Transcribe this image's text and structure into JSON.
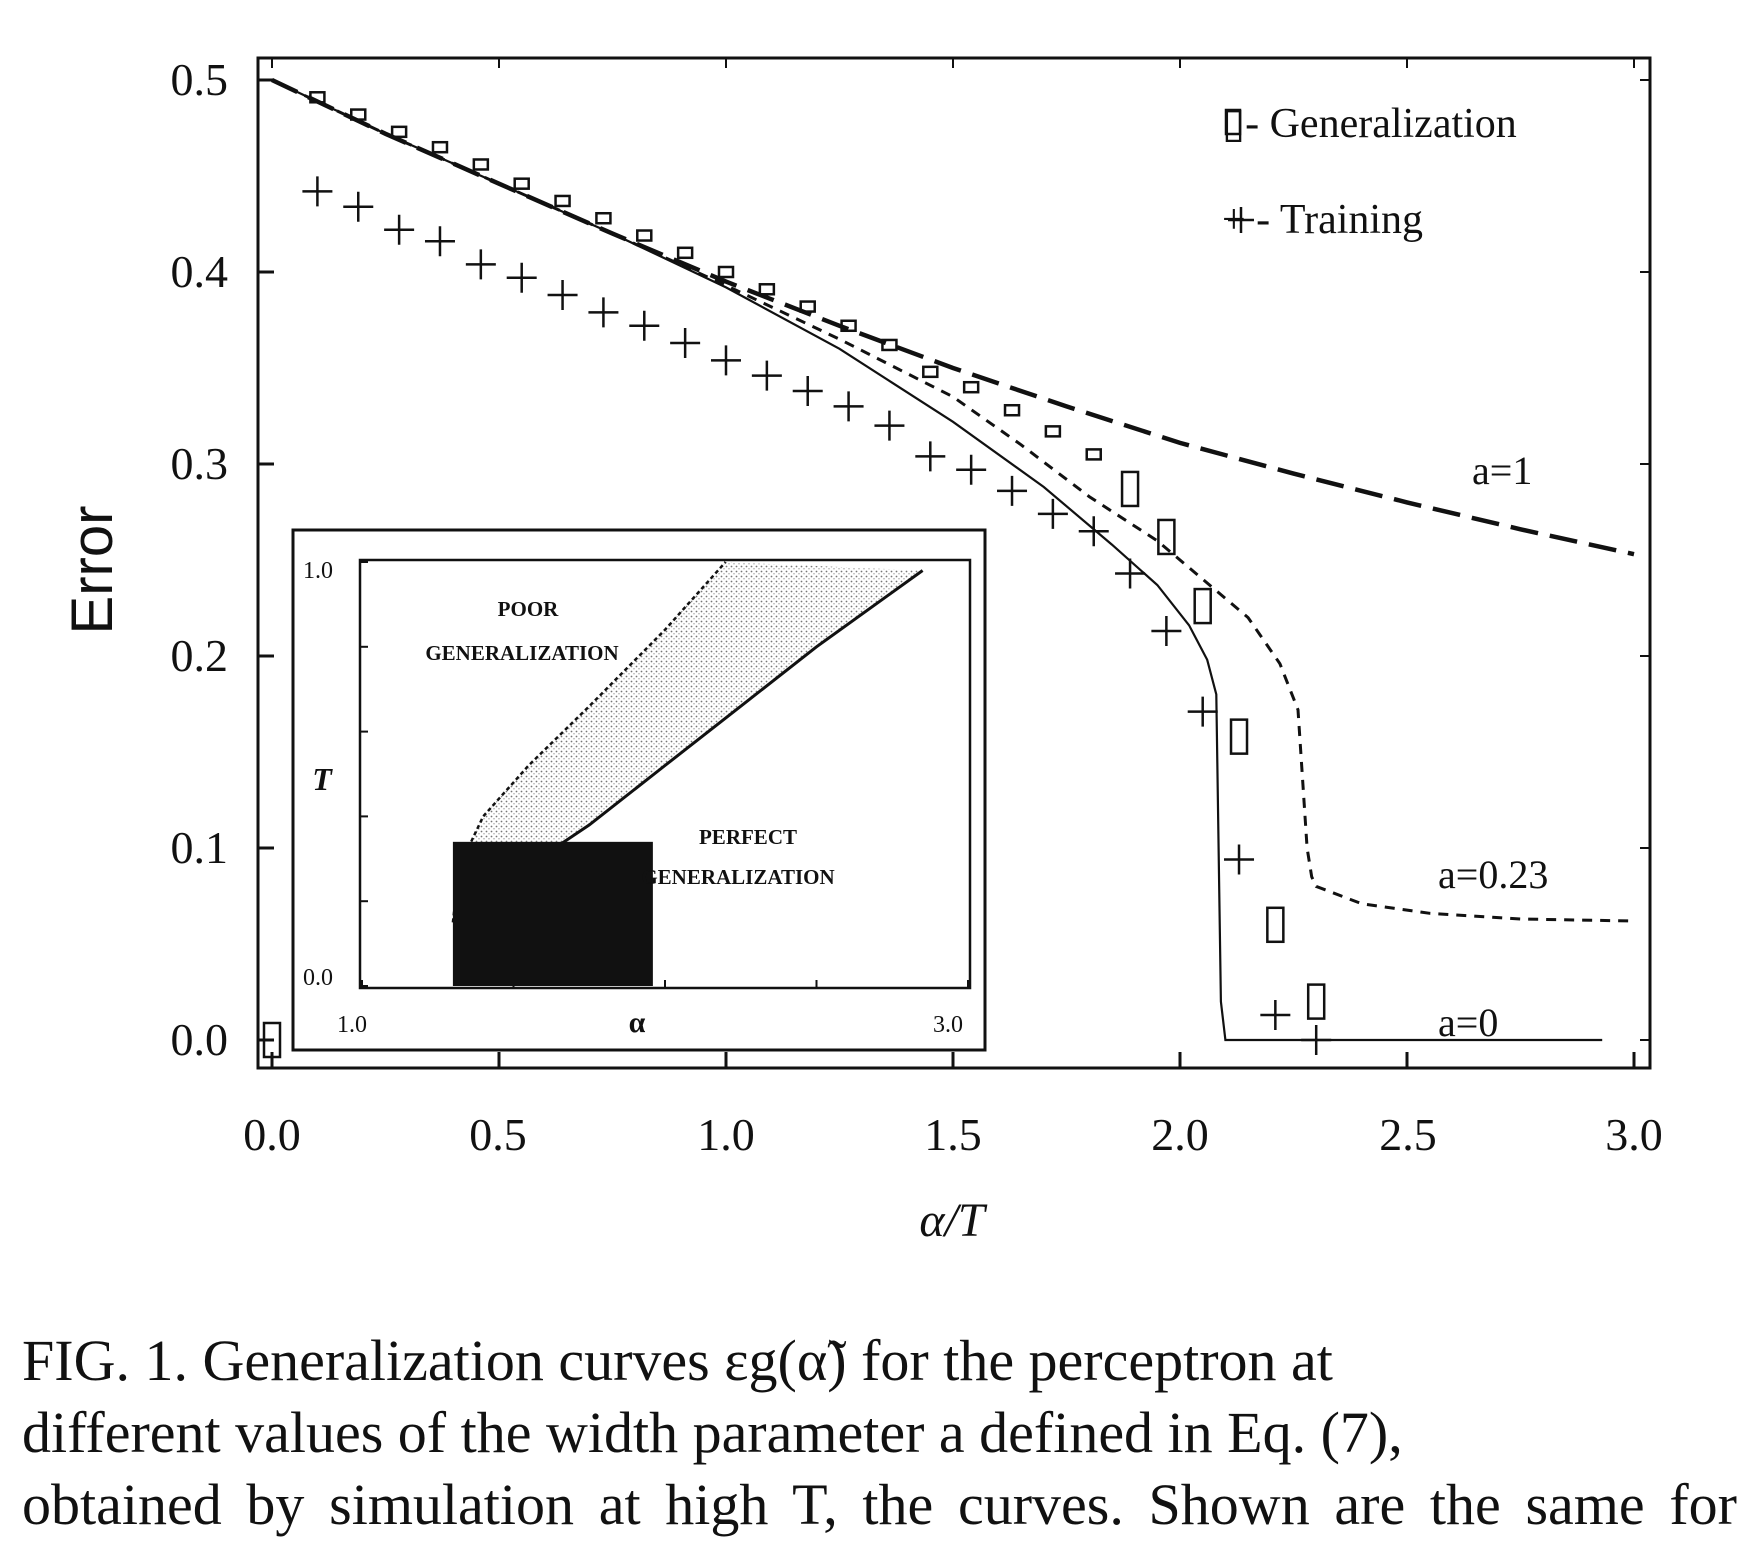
{
  "main_chart": {
    "ylabel": "Error",
    "xlabel": "α/T",
    "xlim": [
      0.0,
      3.0
    ],
    "ylim": [
      0.0,
      0.5
    ],
    "x_ticks": [
      "0.0",
      "0.5",
      "1.0",
      "1.5",
      "2.0",
      "2.5",
      "3.0"
    ],
    "y_ticks": [
      "0.0",
      "0.1",
      "0.2",
      "0.3",
      "0.4",
      "0.5"
    ],
    "legend": {
      "generalization": "▯- Generalization",
      "training": "+ - Training"
    },
    "curve_labels": {
      "a1": "a=1",
      "a023": "a=0.23",
      "a0": "a=0"
    }
  },
  "inset": {
    "xlabel": "α",
    "ylabel": "T",
    "x_ticks": [
      "1.0",
      "3.0"
    ],
    "y_ticks": [
      "0.0",
      "1.0"
    ],
    "region_poor_1": "POOR",
    "region_poor_2": "GENERALIZATION",
    "region_perfect_1": "PERFECT",
    "region_perfect_2": "GENERALIZATION"
  },
  "caption": {
    "line1": "FIG. 1.  Generalization curves εg(α̃) for the perceptron at",
    "line2": "different values of the width parameter a defined in Eq. (7),",
    "line3": "obtained by simulation at high T, the curves. Shown are the same for sample"
  },
  "chart_data": [
    {
      "type": "line",
      "title": "",
      "xlabel": "α/T",
      "ylabel": "Error",
      "xlim": [
        0.0,
        3.0
      ],
      "ylim": [
        0.0,
        0.5
      ],
      "legend_position": "top-right",
      "series": [
        {
          "name": "a=1",
          "style": "long-dash",
          "x": [
            0.0,
            0.25,
            0.5,
            0.75,
            1.0,
            1.25,
            1.5,
            1.75,
            2.0,
            2.25,
            2.5,
            2.75,
            3.0
          ],
          "y": [
            0.5,
            0.472,
            0.446,
            0.42,
            0.395,
            0.372,
            0.35,
            0.33,
            0.311,
            0.295,
            0.28,
            0.266,
            0.253
          ]
        },
        {
          "name": "a=0.23",
          "style": "short-dash",
          "x": [
            0.0,
            0.25,
            0.5,
            0.75,
            1.0,
            1.25,
            1.5,
            1.65,
            1.8,
            1.95,
            2.05,
            2.15,
            2.22,
            2.26,
            2.28,
            2.29,
            2.3,
            2.4,
            2.55,
            2.75,
            3.0
          ],
          "y": [
            0.5,
            0.472,
            0.446,
            0.42,
            0.393,
            0.365,
            0.335,
            0.31,
            0.283,
            0.26,
            0.24,
            0.22,
            0.196,
            0.172,
            0.1,
            0.085,
            0.08,
            0.071,
            0.066,
            0.063,
            0.062
          ]
        },
        {
          "name": "a=0",
          "style": "solid",
          "x": [
            0.0,
            0.25,
            0.5,
            0.75,
            1.0,
            1.25,
            1.5,
            1.7,
            1.85,
            1.95,
            2.02,
            2.06,
            2.08,
            2.085,
            2.09,
            2.1,
            2.5,
            2.93
          ],
          "y": [
            0.5,
            0.472,
            0.446,
            0.42,
            0.392,
            0.36,
            0.322,
            0.288,
            0.258,
            0.237,
            0.216,
            0.198,
            0.18,
            0.1,
            0.02,
            0.0,
            0.0,
            0.0
          ]
        },
        {
          "name": "Generalization",
          "style": "open-rect-markers",
          "x": [
            0.0,
            0.1,
            0.19,
            0.28,
            0.37,
            0.46,
            0.55,
            0.64,
            0.73,
            0.82,
            0.91,
            1.0,
            1.09,
            1.18,
            1.27,
            1.36,
            1.45,
            1.54,
            1.63,
            1.72,
            1.81,
            1.89,
            1.97,
            2.05,
            2.13,
            2.21,
            2.3
          ],
          "y": [
            0.0,
            0.491,
            0.482,
            0.473,
            0.465,
            0.456,
            0.446,
            0.437,
            0.428,
            0.419,
            0.41,
            0.4,
            0.391,
            0.382,
            0.372,
            0.362,
            0.348,
            0.34,
            0.328,
            0.317,
            0.305,
            0.287,
            0.262,
            0.226,
            0.158,
            0.06,
            0.02
          ]
        },
        {
          "name": "Training",
          "style": "plus-markers",
          "x": [
            0.1,
            0.19,
            0.28,
            0.37,
            0.46,
            0.55,
            0.64,
            0.73,
            0.82,
            0.91,
            1.0,
            1.09,
            1.18,
            1.27,
            1.36,
            1.45,
            1.54,
            1.63,
            1.72,
            1.81,
            1.89,
            1.97,
            2.05,
            2.13,
            2.21,
            2.3
          ],
          "y": [
            0.442,
            0.434,
            0.422,
            0.416,
            0.404,
            0.397,
            0.388,
            0.379,
            0.372,
            0.363,
            0.354,
            0.346,
            0.338,
            0.33,
            0.32,
            0.304,
            0.297,
            0.286,
            0.274,
            0.265,
            0.243,
            0.213,
            0.171,
            0.094,
            0.013,
            0.0
          ]
        }
      ]
    },
    {
      "type": "area",
      "title": "",
      "xlabel": "α",
      "ylabel": "T",
      "xlim": [
        1.0,
        3.0
      ],
      "ylim": [
        0.0,
        1.0
      ],
      "regions": [
        {
          "name": "POOR GENERALIZATION",
          "boundary_x": [
            1.3,
            1.32,
            1.4,
            1.55,
            1.75,
            2.0,
            2.2
          ],
          "boundary_y": [
            0.15,
            0.28,
            0.4,
            0.52,
            0.66,
            0.84,
            1.0
          ]
        },
        {
          "name": "PERFECT GENERALIZATION",
          "boundary_x": [
            1.3,
            1.5,
            1.75,
            2.0,
            2.25,
            2.5,
            2.85
          ],
          "boundary_y": [
            0.15,
            0.26,
            0.38,
            0.52,
            0.66,
            0.8,
            0.98
          ]
        },
        {
          "name": "",
          "fill": "solid-black",
          "x_range": [
            1.3,
            1.96
          ],
          "y_range": [
            0.0,
            0.34
          ]
        }
      ]
    }
  ]
}
